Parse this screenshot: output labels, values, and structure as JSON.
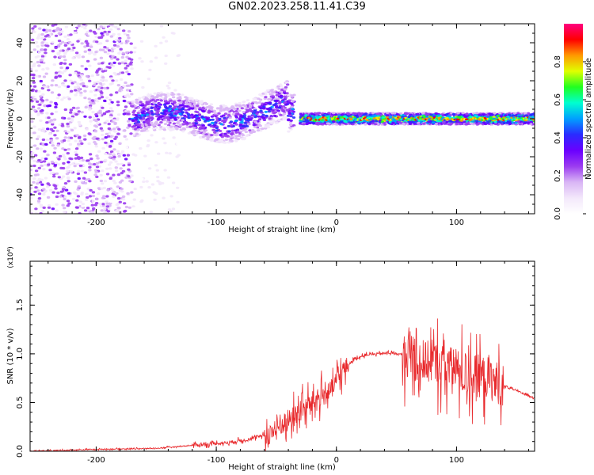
{
  "figure": {
    "title": "GN02.2023.258.11.41.C39"
  },
  "colors": {
    "snr_line": "#e8282b",
    "colormap": [
      "#ffffff",
      "#f3e8fb",
      "#d9b5f5",
      "#9b3cf0",
      "#6a00ff",
      "#2a2bff",
      "#00a0ff",
      "#00ffd0",
      "#20ff20",
      "#e0ff00",
      "#ff9900",
      "#ff0000",
      "#ff0080"
    ]
  },
  "chart_data": [
    {
      "type": "heatmap",
      "title": "GN02.2023.258.11.41.C39",
      "xlabel": "Height of straight line (km)",
      "ylabel": "Frequency (Hz)",
      "xlim": [
        -255,
        165
      ],
      "ylim": [
        -50,
        50
      ],
      "x_ticks": [
        "-200",
        "-100",
        "0",
        "100"
      ],
      "y_ticks": [
        "-40",
        "-20",
        "0",
        "20",
        "40"
      ],
      "colorbar": {
        "label": "Normalized spectral amplitude",
        "range": [
          0.0,
          1.0
        ],
        "ticks": [
          "0.0",
          "0.2",
          "0.4",
          "0.6",
          "0.8"
        ]
      },
      "features": [
        {
          "x_range": [
            -255,
            -170
          ],
          "freq_range": [
            -50,
            50
          ],
          "amplitude": 0.15
        },
        {
          "x_range": [
            -170,
            -130
          ],
          "freq_range": [
            -50,
            50
          ],
          "amplitude": 0.05
        },
        {
          "x_range": [
            -170,
            -35
          ],
          "freq_center": 0,
          "freq_halfwidth": 10,
          "amplitude": 0.3
        },
        {
          "x_range": [
            -30,
            165
          ],
          "freq_center": 0,
          "freq_halfwidth": 3,
          "amplitude": 0.6
        }
      ]
    },
    {
      "type": "line",
      "xlabel": "Height of straight line (km)",
      "ylabel": "SNR (10 * v/v)",
      "y_multiplier": "(x10⁴)",
      "xlim": [
        -255,
        165
      ],
      "ylim": [
        0.0,
        1.95
      ],
      "x_ticks": [
        "-200",
        "-100",
        "0",
        "100"
      ],
      "y_ticks": [
        "0.0",
        "0.5",
        "1.0",
        "1.5"
      ],
      "series": [
        {
          "x": [
            -255,
            -200,
            -150,
            -110,
            -90,
            -70,
            -55,
            -45,
            -35,
            -25,
            -15,
            -5,
            5,
            15,
            25,
            35,
            45,
            55,
            60,
            65,
            75,
            85,
            95,
            105,
            115,
            125,
            135,
            140,
            150,
            165
          ],
          "y": [
            0.0,
            0.02,
            0.03,
            0.07,
            0.09,
            0.13,
            0.18,
            0.28,
            0.36,
            0.46,
            0.55,
            0.62,
            0.82,
            0.95,
            0.99,
            1.0,
            1.01,
            0.99,
            0.98,
            0.95,
            0.92,
            0.9,
            0.86,
            0.8,
            0.78,
            0.76,
            0.7,
            0.67,
            0.62,
            0.55
          ]
        }
      ]
    }
  ]
}
